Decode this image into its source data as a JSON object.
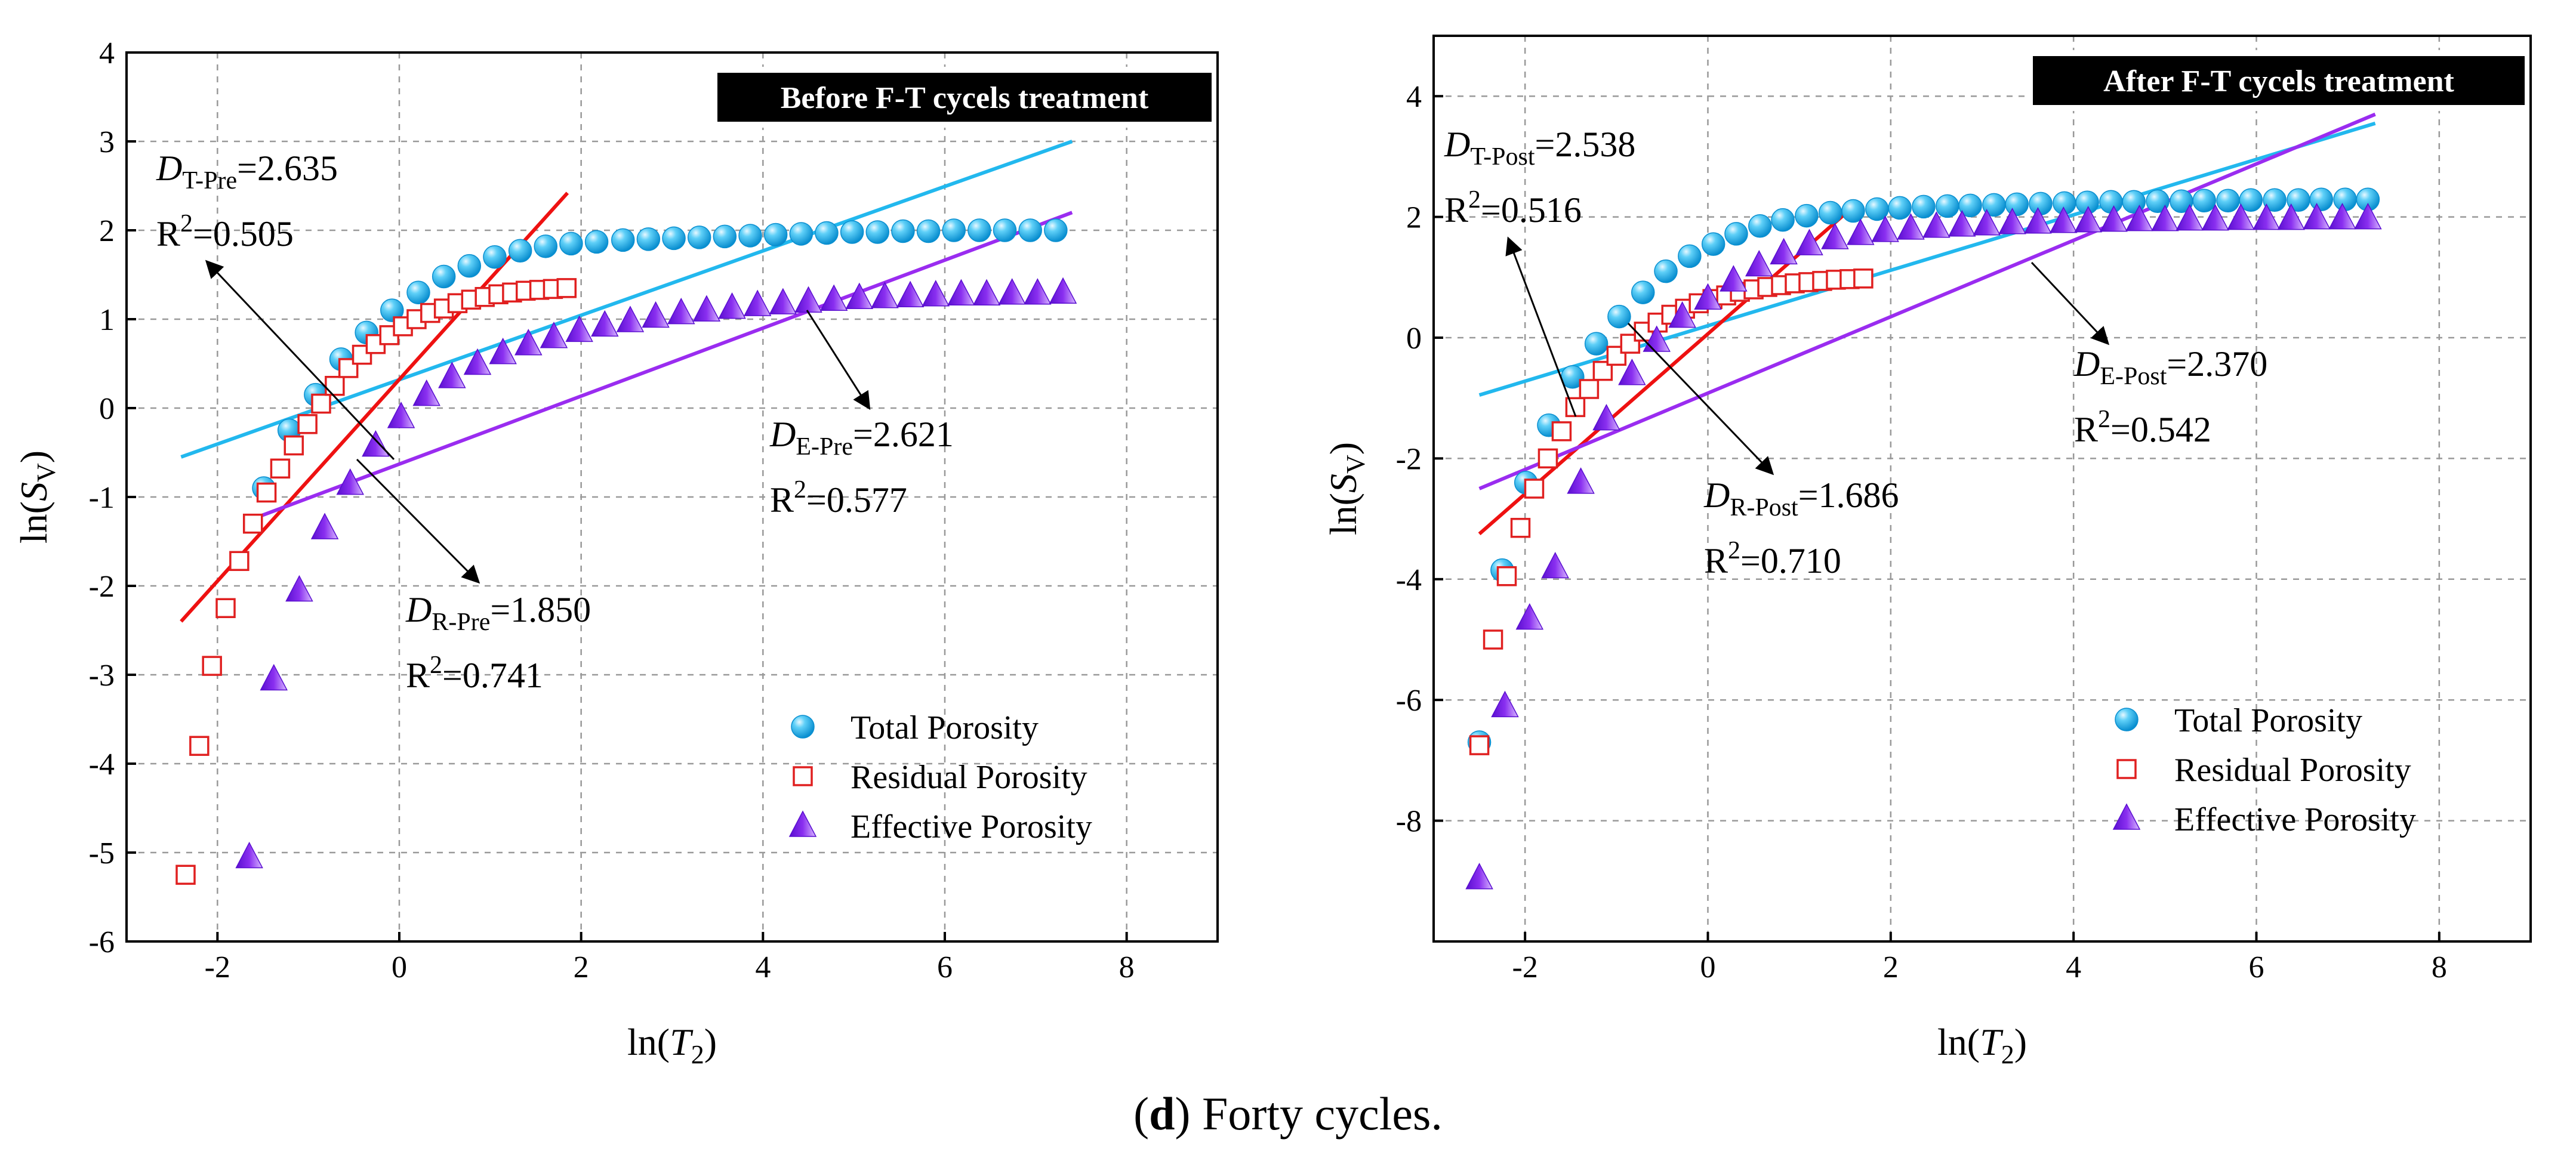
{
  "caption": {
    "label": "d",
    "text": "Forty cycles.",
    "open": "(",
    "close": ") "
  },
  "chart_data": [
    {
      "type": "scatter",
      "title": "Before F-T cycels treatment",
      "xlabel": "ln(T2)",
      "ylabel": "ln(SV)",
      "xlim": [
        -3,
        9
      ],
      "ylim": [
        -6,
        4
      ],
      "xticks": [
        -2,
        0,
        2,
        4,
        6,
        8
      ],
      "yticks": [
        -6,
        -5,
        -4,
        -3,
        -2,
        -1,
        0,
        1,
        2,
        3,
        4
      ],
      "legend": [
        "Total Porosity",
        "Residual Porosity",
        "Effective Porosity"
      ],
      "colors": {
        "total": "#22b8ee",
        "residual": "#e02020",
        "effective": "#9a2cf0",
        "fit_total": "#22b8ee",
        "fit_residual": "#ee1111",
        "fit_effective": "#9a2cf0"
      },
      "series": [
        {
          "name": "Total Porosity",
          "x": [
            -1.49,
            -1.21,
            -0.92,
            -0.64,
            -0.36,
            -0.08,
            0.21,
            0.49,
            0.77,
            1.05,
            1.33,
            1.61,
            1.89,
            2.17,
            2.46,
            2.74,
            3.02,
            3.3,
            3.58,
            3.86,
            4.14,
            4.42,
            4.7,
            4.98,
            5.26,
            5.54,
            5.82,
            6.1,
            6.38,
            6.66,
            6.94,
            7.22
          ],
          "y": [
            -0.9,
            -0.25,
            0.15,
            0.55,
            0.85,
            1.1,
            1.3,
            1.48,
            1.6,
            1.7,
            1.77,
            1.82,
            1.85,
            1.87,
            1.89,
            1.9,
            1.91,
            1.92,
            1.93,
            1.94,
            1.95,
            1.96,
            1.97,
            1.98,
            1.98,
            1.99,
            1.99,
            2.0,
            2.0,
            2.0,
            2.0,
            2.0
          ]
        },
        {
          "name": "Residual Porosity",
          "x": [
            -2.35,
            -2.2,
            -2.06,
            -1.91,
            -1.76,
            -1.61,
            -1.46,
            -1.31,
            -1.16,
            -1.01,
            -0.86,
            -0.71,
            -0.56,
            -0.41,
            -0.26,
            -0.11,
            0.04,
            0.19,
            0.34,
            0.49,
            0.64,
            0.79,
            0.94,
            1.09,
            1.24,
            1.39,
            1.54,
            1.69,
            1.84
          ],
          "y": [
            -5.25,
            -3.8,
            -2.9,
            -2.25,
            -1.72,
            -1.3,
            -0.95,
            -0.68,
            -0.42,
            -0.18,
            0.05,
            0.25,
            0.45,
            0.6,
            0.72,
            0.82,
            0.92,
            1.0,
            1.07,
            1.12,
            1.18,
            1.22,
            1.25,
            1.28,
            1.3,
            1.32,
            1.33,
            1.34,
            1.35
          ]
        },
        {
          "name": "Effective Porosity",
          "x": [
            -1.65,
            -1.38,
            -1.1,
            -0.82,
            -0.54,
            -0.26,
            0.02,
            0.3,
            0.58,
            0.86,
            1.14,
            1.42,
            1.7,
            1.98,
            2.26,
            2.54,
            2.82,
            3.1,
            3.38,
            3.66,
            3.94,
            4.22,
            4.5,
            4.78,
            5.06,
            5.34,
            5.62,
            5.9,
            6.18,
            6.46,
            6.74,
            7.02,
            7.3
          ],
          "y": [
            -5.05,
            -3.05,
            -2.05,
            -1.35,
            -0.85,
            -0.42,
            -0.1,
            0.15,
            0.35,
            0.5,
            0.62,
            0.72,
            0.8,
            0.87,
            0.93,
            0.98,
            1.03,
            1.07,
            1.1,
            1.13,
            1.16,
            1.18,
            1.2,
            1.22,
            1.24,
            1.25,
            1.26,
            1.27,
            1.28,
            1.28,
            1.29,
            1.29,
            1.3
          ]
        }
      ],
      "fits": [
        {
          "name": "total",
          "x": [
            -2.4,
            7.4
          ],
          "y": [
            -0.55,
            3.0
          ]
        },
        {
          "name": "residual",
          "x": [
            -2.4,
            1.85
          ],
          "y": [
            -2.4,
            2.42
          ]
        },
        {
          "name": "effective",
          "x": [
            -1.7,
            7.4
          ],
          "y": [
            -1.28,
            2.2
          ]
        }
      ],
      "annotations": {
        "t": {
          "main": "D",
          "sub": "T-Pre",
          "val": "=2.635",
          "r2": "R",
          "r2sup": "2",
          "r2val": "=0.505"
        },
        "r": {
          "main": "D",
          "sub": "R-Pre",
          "val": "=1.850",
          "r2": "R",
          "r2sup": "2",
          "r2val": "=0.741"
        },
        "e": {
          "main": "D",
          "sub": "E-Pre",
          "val": "=2.621",
          "r2": "R",
          "r2sup": "2",
          "r2val": "=0.577"
        }
      }
    },
    {
      "type": "scatter",
      "title": "After F-T cycels treatment",
      "xlabel": "ln(T2)",
      "ylabel": "ln(SV)",
      "xlim": [
        -3,
        9
      ],
      "ylim": [
        -10,
        5
      ],
      "xticks": [
        -2,
        0,
        2,
        4,
        6,
        8
      ],
      "yticks": [
        -8,
        -6,
        -4,
        -2,
        0,
        2,
        4
      ],
      "legend": [
        "Total Porosity",
        "Residual Porosity",
        "Effective Porosity"
      ],
      "colors": {
        "total": "#22b8ee",
        "residual": "#e02020",
        "effective": "#9a2cf0",
        "fit_total": "#22b8ee",
        "fit_residual": "#ee1111",
        "fit_effective": "#9a2cf0"
      },
      "series": [
        {
          "name": "Total Porosity",
          "x": [
            -2.5,
            -2.25,
            -1.99,
            -1.74,
            -1.48,
            -1.22,
            -0.97,
            -0.71,
            -0.46,
            -0.2,
            0.06,
            0.31,
            0.57,
            0.82,
            1.08,
            1.34,
            1.59,
            1.85,
            2.1,
            2.36,
            2.62,
            2.87,
            3.13,
            3.38,
            3.64,
            3.9,
            4.15,
            4.41,
            4.66,
            4.92,
            5.18,
            5.43,
            5.69,
            5.94,
            6.2,
            6.46,
            6.71,
            6.97,
            7.22
          ],
          "y": [
            -6.7,
            -3.85,
            -2.4,
            -1.45,
            -0.65,
            -0.1,
            0.35,
            0.75,
            1.1,
            1.35,
            1.55,
            1.72,
            1.85,
            1.95,
            2.02,
            2.07,
            2.1,
            2.13,
            2.15,
            2.17,
            2.18,
            2.19,
            2.2,
            2.21,
            2.22,
            2.23,
            2.24,
            2.25,
            2.25,
            2.26,
            2.26,
            2.27,
            2.27,
            2.28,
            2.28,
            2.28,
            2.29,
            2.29,
            2.29
          ]
        },
        {
          "name": "Residual Porosity",
          "x": [
            -2.5,
            -2.35,
            -2.2,
            -2.05,
            -1.9,
            -1.75,
            -1.6,
            -1.45,
            -1.3,
            -1.15,
            -1.0,
            -0.85,
            -0.7,
            -0.55,
            -0.4,
            -0.25,
            -0.1,
            0.05,
            0.2,
            0.35,
            0.5,
            0.65,
            0.8,
            0.95,
            1.1,
            1.25,
            1.4,
            1.55,
            1.7
          ],
          "y": [
            -6.75,
            -5.0,
            -3.95,
            -3.15,
            -2.5,
            -2.0,
            -1.55,
            -1.15,
            -0.85,
            -0.55,
            -0.3,
            -0.1,
            0.1,
            0.25,
            0.38,
            0.48,
            0.57,
            0.64,
            0.7,
            0.76,
            0.8,
            0.84,
            0.87,
            0.9,
            0.92,
            0.94,
            0.96,
            0.97,
            0.98
          ]
        },
        {
          "name": "Effective Porosity",
          "x": [
            -2.5,
            -2.22,
            -1.95,
            -1.67,
            -1.39,
            -1.11,
            -0.83,
            -0.56,
            -0.28,
            0.0,
            0.28,
            0.56,
            0.83,
            1.11,
            1.39,
            1.67,
            1.94,
            2.22,
            2.5,
            2.78,
            3.05,
            3.33,
            3.61,
            3.89,
            4.16,
            4.44,
            4.72,
            5.0,
            5.27,
            5.55,
            5.83,
            6.11,
            6.38,
            6.66,
            6.94,
            7.22
          ],
          "y": [
            -8.95,
            -6.1,
            -4.65,
            -3.8,
            -2.4,
            -1.35,
            -0.6,
            -0.05,
            0.35,
            0.65,
            0.95,
            1.2,
            1.4,
            1.55,
            1.65,
            1.72,
            1.77,
            1.81,
            1.84,
            1.86,
            1.88,
            1.9,
            1.91,
            1.92,
            1.93,
            1.94,
            1.95,
            1.95,
            1.96,
            1.96,
            1.97,
            1.97,
            1.97,
            1.98,
            1.98,
            1.98
          ]
        }
      ],
      "fits": [
        {
          "name": "total",
          "x": [
            -2.5,
            7.3
          ],
          "y": [
            -0.95,
            3.55
          ]
        },
        {
          "name": "residual",
          "x": [
            -2.5,
            1.65
          ],
          "y": [
            -3.25,
            2.25
          ]
        },
        {
          "name": "effective",
          "x": [
            -2.5,
            7.3
          ],
          "y": [
            -2.5,
            3.7
          ]
        }
      ],
      "annotations": {
        "t": {
          "main": "D",
          "sub": "T-Post",
          "val": "=2.538",
          "r2": "R",
          "r2sup": "2",
          "r2val": "=0.516"
        },
        "r": {
          "main": "D",
          "sub": "R-Post",
          "val": "=1.686",
          "r2": "R",
          "r2sup": "2",
          "r2val": "=0.710"
        },
        "e": {
          "main": "D",
          "sub": "E-Post",
          "val": "=2.370",
          "r2": "R",
          "r2sup": "2",
          "r2val": "=0.542"
        }
      }
    }
  ]
}
